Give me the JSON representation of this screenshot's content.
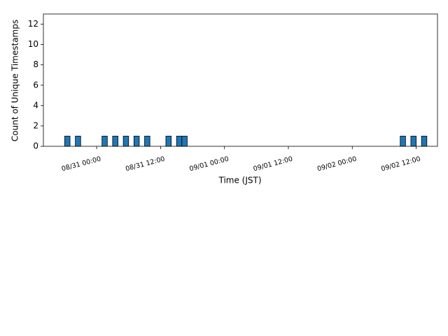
{
  "chart_data": {
    "type": "bar",
    "x_label": "Time (JST)",
    "y_label": "Count of Unique Timestamps",
    "x": [
      "08/30 18:00",
      "08/30 20:00",
      "08/31 01:00",
      "08/31 03:00",
      "08/31 05:00",
      "08/31 07:00",
      "08/31 09:00",
      "08/31 13:00",
      "08/31 15:00",
      "08/31 16:00",
      "09/02 09:00",
      "09/02 11:00",
      "09/02 13:00"
    ],
    "values": [
      1,
      1,
      1,
      1,
      1,
      1,
      1,
      1,
      1,
      1,
      1,
      1,
      1
    ],
    "color": "#1f77b4",
    "xlim": [
      "08/30 14:00",
      "09/02 16:00"
    ],
    "xticks": [
      "08/31 00:00",
      "08/31 12:00",
      "09/01 00:00",
      "09/01 12:00",
      "09/02 00:00",
      "09/02 12:00"
    ],
    "ylim": [
      0,
      13
    ],
    "yticks": [
      0,
      2,
      4,
      6,
      8,
      10,
      12
    ]
  }
}
